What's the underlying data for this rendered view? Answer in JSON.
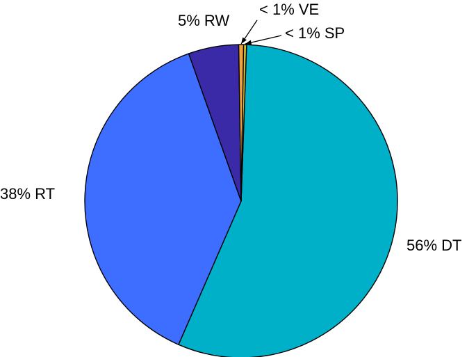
{
  "chart_data": {
    "type": "pie",
    "slices": [
      {
        "label": "56% DT",
        "value": 56.0,
        "color": "#00b0c8"
      },
      {
        "label": "38% RT",
        "value": 38.0,
        "color": "#3d6eff"
      },
      {
        "label": "5% RW",
        "value": 5.2,
        "color": "#3b2aa8"
      },
      {
        "label": "< 1% VE",
        "value": 0.5,
        "color": "#f0a23c"
      },
      {
        "label": "< 1% SP",
        "value": 0.3,
        "color": "#d8c020"
      }
    ]
  }
}
